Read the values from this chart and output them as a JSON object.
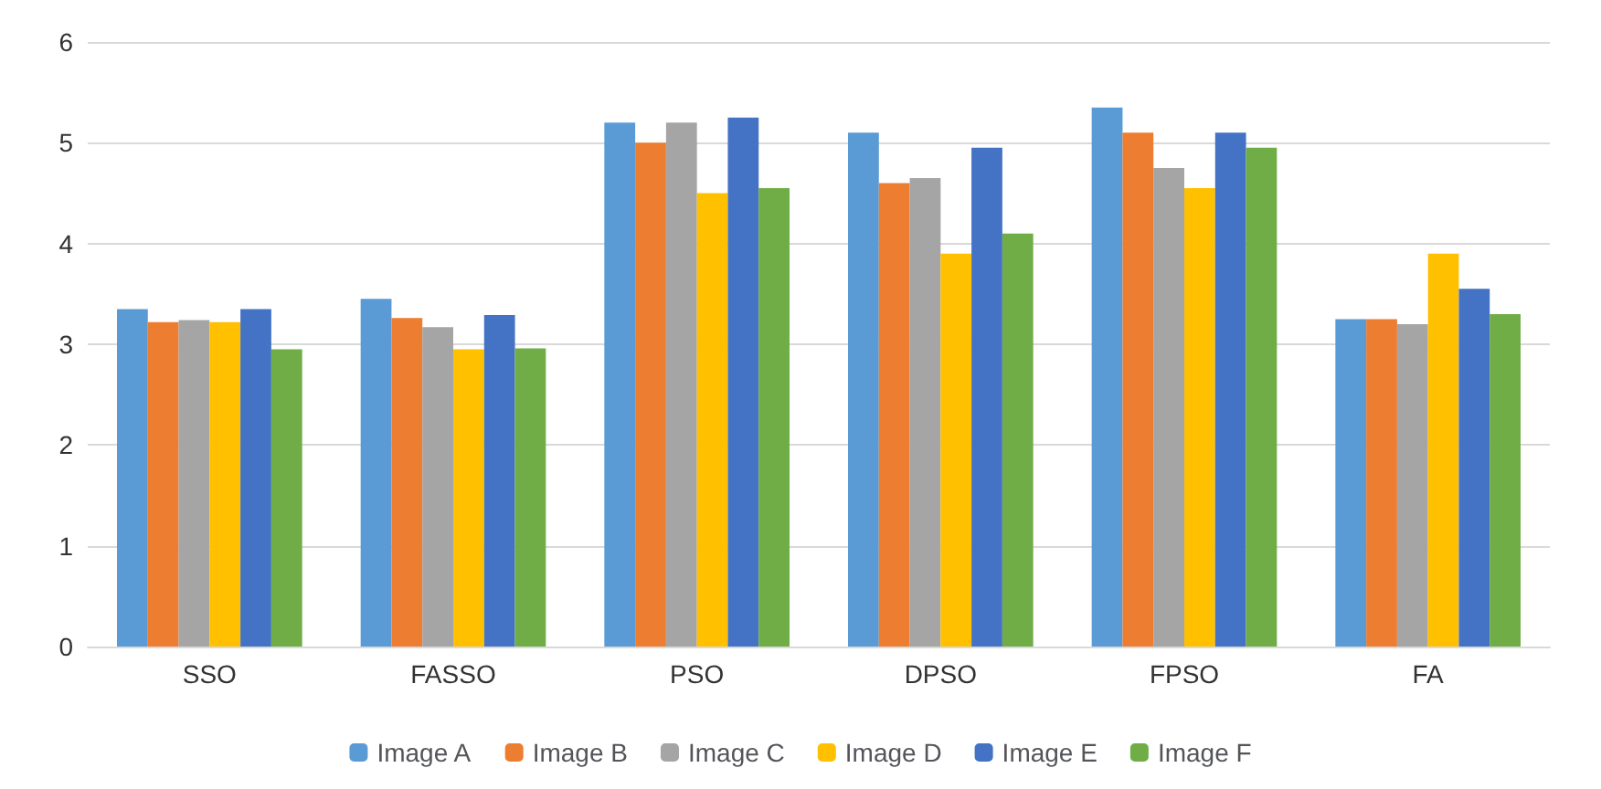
{
  "chart_data": {
    "type": "bar",
    "categories": [
      "SSO",
      "FASSO",
      "PSO",
      "DPSO",
      "FPSO",
      "FA"
    ],
    "series": [
      {
        "name": "Image A",
        "color": "#5b9bd5",
        "values": [
          3.35,
          3.45,
          5.2,
          5.1,
          5.35,
          3.25
        ]
      },
      {
        "name": "Image B",
        "color": "#ed7d31",
        "values": [
          3.22,
          3.26,
          5.0,
          4.6,
          5.1,
          3.25
        ]
      },
      {
        "name": "Image C",
        "color": "#a5a5a5",
        "values": [
          3.24,
          3.17,
          5.2,
          4.65,
          4.75,
          3.2
        ]
      },
      {
        "name": "Image D",
        "color": "#ffc000",
        "values": [
          3.22,
          2.95,
          4.5,
          3.9,
          4.55,
          3.9
        ]
      },
      {
        "name": "Image E",
        "color": "#4472c4",
        "values": [
          3.35,
          3.29,
          5.25,
          4.95,
          5.1,
          3.55
        ]
      },
      {
        "name": "Image F",
        "color": "#70ad47",
        "values": [
          2.95,
          2.96,
          4.55,
          4.1,
          4.95,
          3.3
        ]
      }
    ],
    "ylim": [
      0,
      6
    ],
    "yticks": [
      0,
      1,
      2,
      3,
      4,
      5,
      6
    ],
    "grid": "y",
    "legend": "bottom"
  }
}
